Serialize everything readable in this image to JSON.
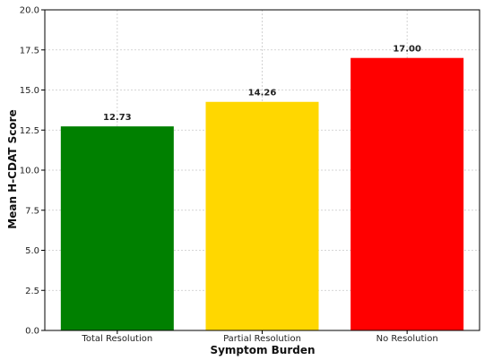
{
  "chart_data": {
    "type": "bar",
    "categories": [
      "Total Resolution",
      "Partial Resolution",
      "No Resolution"
    ],
    "values": [
      12.73,
      14.26,
      17.0
    ],
    "data_labels": [
      "12.73",
      "14.26",
      "17.00"
    ],
    "colors": [
      "#008000",
      "#FFD700",
      "#FF0000"
    ],
    "title": "",
    "xlabel": "Symptom Burden",
    "ylabel": "Mean H-CDAT Score",
    "ylim": [
      0,
      20
    ],
    "yticks": [
      "0.0",
      "2.5",
      "5.0",
      "7.5",
      "10.0",
      "12.5",
      "15.0",
      "17.5",
      "20.0"
    ],
    "grid": true
  }
}
